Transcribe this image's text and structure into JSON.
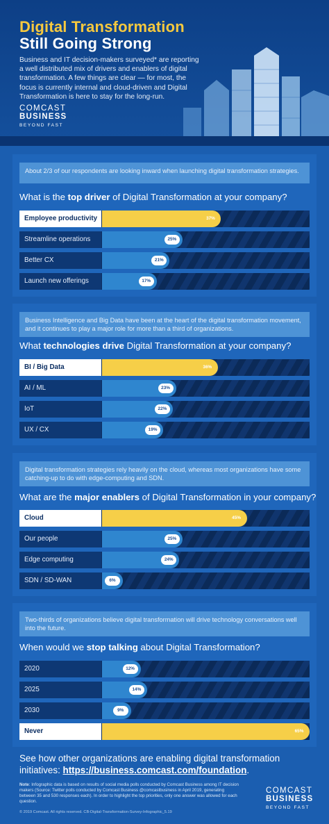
{
  "header": {
    "title_line1": "Digital Transformation",
    "title_line2": "Still Going Strong",
    "intro": "Business and IT decision-makers surveyed* are reporting a well distributed mix of drivers and enablers of digital transformation.  A few things are clear — for most, the focus is currently internal and cloud-driven and Digital Transformation is here to stay for the long-run.",
    "logo_line1": "COMCAST",
    "logo_line2": "BUSINESS",
    "logo_line3": "BEYOND FAST"
  },
  "colors": {
    "background": "#1b5eb0",
    "header": "#0d3f86",
    "highlight": "#f6cf48",
    "bar": "#2f86cf",
    "note_box": "#4e93d6"
  },
  "chart_data": [
    {
      "type": "bar",
      "note": "About 2/3 of our respondents are looking inward when launching digital transformation strategies.",
      "question_pre": "What is the ",
      "question_bold": "top driver",
      "question_post": " of Digital Transformation at your company?",
      "categories": [
        "Employee productivity",
        "Streamline operations",
        "Better CX",
        "Launch new offerings"
      ],
      "values": [
        37,
        25,
        21,
        17
      ],
      "value_labels": [
        "37%",
        "25%",
        "21%",
        "17%"
      ],
      "highlight_index": 0
    },
    {
      "type": "bar",
      "note": "Business Intelligence and Big Data have been at the heart of the digital transformation movement, and it continues to play a major role for more than a third of organizations.",
      "question_pre": "What ",
      "question_bold": "technologies drive",
      "question_post": " Digital Transformation at your company?",
      "categories": [
        "BI / Big Data",
        "AI / ML",
        "IoT",
        "UX / CX"
      ],
      "values": [
        36,
        23,
        22,
        19
      ],
      "value_labels": [
        "36%",
        "23%",
        "22%",
        "19%"
      ],
      "highlight_index": 0
    },
    {
      "type": "bar",
      "note": "Digital transformation strategies rely heavily on the cloud, whereas most organizations have some catching-up to do with edge-computing and SDN.",
      "question_pre": "What are the ",
      "question_bold": "major enablers",
      "question_post": " of Digital Transformation in your company?",
      "categories": [
        "Cloud",
        "Our people",
        "Edge computing",
        "SDN / SD-WAN"
      ],
      "values": [
        45,
        25,
        24,
        6
      ],
      "value_labels": [
        "45%",
        "25%",
        "24%",
        "6%"
      ],
      "highlight_index": 0
    },
    {
      "type": "bar",
      "note": "Two-thirds of organizations believe digital transformation will drive technology conversations well into the future.",
      "question_pre": "When would we ",
      "question_bold": "stop talking",
      "question_post": " about Digital Transformation?",
      "categories": [
        "2020",
        "2025",
        "2030",
        "Never"
      ],
      "values": [
        12,
        14,
        9,
        65
      ],
      "value_labels": [
        "12%",
        "14%",
        "9%",
        "65%"
      ],
      "highlight_index": 3
    }
  ],
  "footer": {
    "cta_text": "See how other organizations are enabling digital transformation initiatives: ",
    "cta_link": "https://business.comcast.com/foundation",
    "cta_end": ".",
    "note_label": "Note",
    "note_text": ": Infographic data is based on results of social media polls conducted by Comcast Business among IT decision makers (Source: Twitter polls conducted by Comcast Business @comcastbusiness in April 2019, generating between 35 and 530 responses each). In order to highlight the top priorities, only one answer was allowed for each question.",
    "copyright": "© 2019 Comcast. All rights reserved. CB-Digital-Transformation-Survey-Infographic_5.19",
    "logo_line1": "COMCAST",
    "logo_line2": "BUSINESS",
    "logo_line3": "BEYOND FAST"
  }
}
